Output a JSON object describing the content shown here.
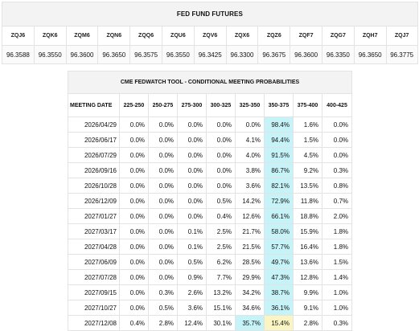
{
  "fed_fund_futures": {
    "title": "FED FUND FUTURES",
    "contracts": [
      "ZQJ6",
      "ZQK6",
      "ZQM6",
      "ZQN6",
      "ZQQ6",
      "ZQU6",
      "ZQV6",
      "ZQX6",
      "ZQZ6",
      "ZQF7",
      "ZQG7",
      "ZQH7",
      "ZQJ7"
    ],
    "prices": [
      "96.3588",
      "96.3550",
      "96.3600",
      "96.3650",
      "96.3575",
      "96.3550",
      "96.3425",
      "96.3300",
      "96.3675",
      "96.3600",
      "96.3350",
      "96.3650",
      "96.3775"
    ]
  },
  "fedwatch": {
    "title": "CME FEDWATCH TOOL - CONDITIONAL MEETING PROBABILITIES",
    "columns": [
      "MEETING DATE",
      "225-250",
      "250-275",
      "275-300",
      "300-325",
      "325-350",
      "350-375",
      "375-400",
      "400-425"
    ],
    "rows": [
      {
        "date": "2026/04/29",
        "values": [
          "0.0%",
          "0.0%",
          "0.0%",
          "0.0%",
          "0.0%",
          "98.4%",
          "1.6%",
          "0.0%"
        ],
        "highlight": 5
      },
      {
        "date": "2026/06/17",
        "values": [
          "0.0%",
          "0.0%",
          "0.0%",
          "0.0%",
          "4.1%",
          "94.4%",
          "1.5%",
          "0.0%"
        ],
        "highlight": 5
      },
      {
        "date": "2026/07/29",
        "values": [
          "0.0%",
          "0.0%",
          "0.0%",
          "0.0%",
          "4.0%",
          "91.5%",
          "4.5%",
          "0.0%"
        ],
        "highlight": 5
      },
      {
        "date": "2026/09/16",
        "values": [
          "0.0%",
          "0.0%",
          "0.0%",
          "0.0%",
          "3.8%",
          "86.7%",
          "9.2%",
          "0.3%"
        ],
        "highlight": 5
      },
      {
        "date": "2026/10/28",
        "values": [
          "0.0%",
          "0.0%",
          "0.0%",
          "0.0%",
          "3.6%",
          "82.1%",
          "13.5%",
          "0.8%"
        ],
        "highlight": 5
      },
      {
        "date": "2026/12/09",
        "values": [
          "0.0%",
          "0.0%",
          "0.0%",
          "0.5%",
          "14.2%",
          "72.9%",
          "11.8%",
          "0.7%"
        ],
        "highlight": 5
      },
      {
        "date": "2027/01/27",
        "values": [
          "0.0%",
          "0.0%",
          "0.0%",
          "0.4%",
          "12.6%",
          "66.1%",
          "18.8%",
          "2.0%"
        ],
        "highlight": 5
      },
      {
        "date": "2027/03/17",
        "values": [
          "0.0%",
          "0.0%",
          "0.1%",
          "2.5%",
          "21.7%",
          "58.0%",
          "15.9%",
          "1.8%"
        ],
        "highlight": 5
      },
      {
        "date": "2027/04/28",
        "values": [
          "0.0%",
          "0.0%",
          "0.1%",
          "2.5%",
          "21.5%",
          "57.7%",
          "16.4%",
          "1.8%"
        ],
        "highlight": 5
      },
      {
        "date": "2027/06/09",
        "values": [
          "0.0%",
          "0.0%",
          "0.5%",
          "6.2%",
          "28.5%",
          "49.7%",
          "13.6%",
          "1.5%"
        ],
        "highlight": 5
      },
      {
        "date": "2027/07/28",
        "values": [
          "0.0%",
          "0.0%",
          "0.9%",
          "7.7%",
          "29.9%",
          "47.3%",
          "12.8%",
          "1.4%"
        ],
        "highlight": 5
      },
      {
        "date": "2027/09/15",
        "values": [
          "0.0%",
          "0.3%",
          "2.6%",
          "13.2%",
          "34.2%",
          "38.7%",
          "9.9%",
          "1.0%"
        ],
        "highlight": 5
      },
      {
        "date": "2027/10/27",
        "values": [
          "0.0%",
          "0.5%",
          "3.6%",
          "15.1%",
          "34.6%",
          "36.1%",
          "9.1%",
          "1.0%"
        ],
        "highlight": 5
      },
      {
        "date": "2027/12/08",
        "values": [
          "0.4%",
          "2.8%",
          "12.4%",
          "30.1%",
          "35.7%",
          "15.4%",
          "2.8%",
          "0.3%"
        ],
        "highlight": 4,
        "secondary": 5
      }
    ],
    "colors": {
      "highlight": "#c6f3f7",
      "secondary": "#fbf5c4"
    }
  }
}
